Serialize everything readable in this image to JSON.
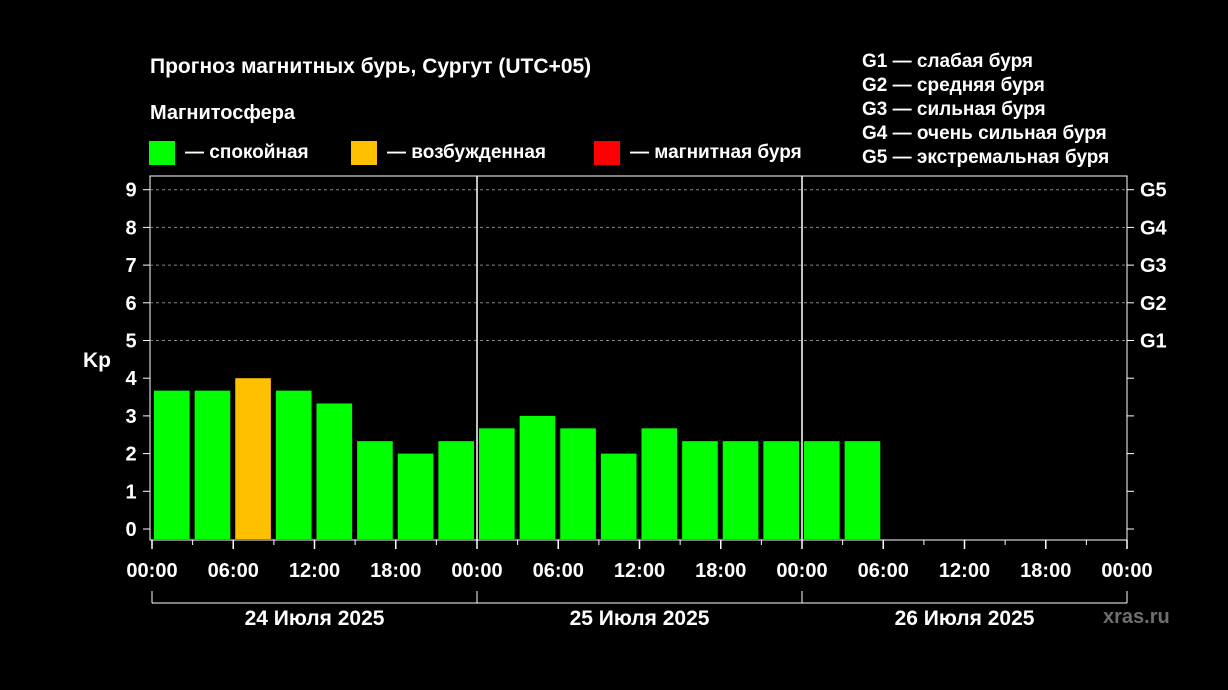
{
  "title": "Прогноз магнитных бурь, Сургут (UTC+05)",
  "legend": {
    "title": "Магнитосфера",
    "items": [
      {
        "label": "— спокойная",
        "color": "#00ff00"
      },
      {
        "label": "— возбужденная",
        "color": "#ffc000"
      },
      {
        "label": "— магнитная буря",
        "color": "#ff0000"
      }
    ]
  },
  "storm_levels": [
    "G1 — слабая буря",
    "G2 — средняя буря",
    "G3 — сильная буря",
    "G4 — очень сильная буря",
    "G5 — экстремальная буря"
  ],
  "watermark": "xras.ru",
  "chart_data": {
    "type": "bar",
    "ylabel": "Kp",
    "ylim": [
      0,
      9
    ],
    "yticks": [
      "0",
      "1",
      "2",
      "3",
      "4",
      "5",
      "6",
      "7",
      "8",
      "9"
    ],
    "right_axis": [
      {
        "label": "G1",
        "kp": 5
      },
      {
        "label": "G2",
        "kp": 6
      },
      {
        "label": "G3",
        "kp": 7
      },
      {
        "label": "G4",
        "kp": 8
      },
      {
        "label": "G5",
        "kp": 9
      }
    ],
    "grid": "dashed horizontal at Kp 5-9",
    "xtick_labels": [
      "00:00",
      "06:00",
      "12:00",
      "18:00",
      "00:00",
      "06:00",
      "12:00",
      "18:00",
      "00:00",
      "06:00",
      "12:00",
      "18:00",
      "00:00"
    ],
    "days": [
      "24 Июля 2025",
      "25 Июля 2025",
      "26 Июля 2025"
    ],
    "interval_hours": 3,
    "values": [
      3.67,
      3.67,
      4.0,
      3.67,
      3.33,
      2.33,
      2.0,
      2.33,
      2.67,
      3.0,
      2.67,
      2.0,
      2.67,
      2.33,
      2.33,
      2.33,
      2.33,
      2.33
    ],
    "colors": [
      "#00ff00",
      "#00ff00",
      "#ffc000",
      "#00ff00",
      "#00ff00",
      "#00ff00",
      "#00ff00",
      "#00ff00",
      "#00ff00",
      "#00ff00",
      "#00ff00",
      "#00ff00",
      "#00ff00",
      "#00ff00",
      "#00ff00",
      "#00ff00",
      "#00ff00",
      "#00ff00"
    ]
  }
}
